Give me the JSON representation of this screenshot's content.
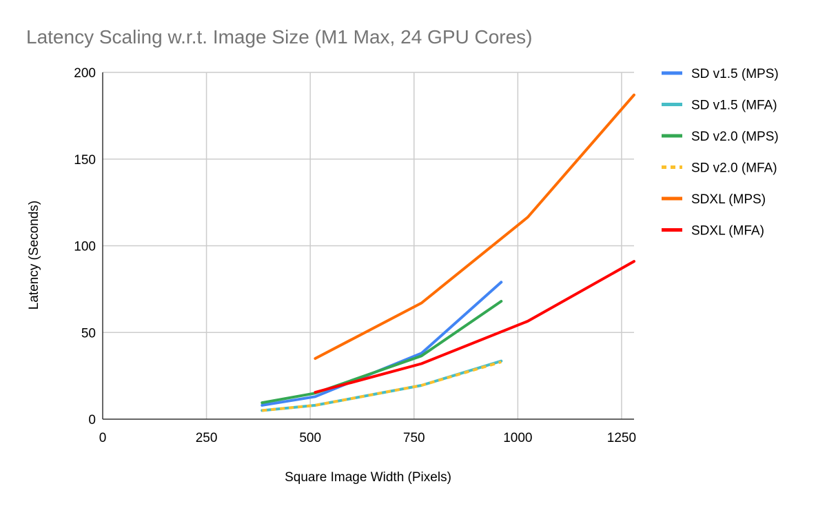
{
  "chart_data": {
    "type": "line",
    "title": "Latency Scaling w.r.t. Image Size (M1 Max, 24 GPU Cores)",
    "xlabel": "Square Image Width (Pixels)",
    "ylabel": "Latency (Seconds)",
    "xlim": [
      0,
      1280
    ],
    "ylim": [
      0,
      200
    ],
    "x_ticks": [
      0,
      250,
      500,
      750,
      1000,
      1250
    ],
    "y_ticks": [
      0,
      50,
      100,
      150,
      200
    ],
    "grid": true,
    "legend_position": "right",
    "series": [
      {
        "name": "SD v1.5 (MPS)",
        "color": "#4285f4",
        "dashed": false,
        "points": [
          [
            384,
            8
          ],
          [
            512,
            13
          ],
          [
            768,
            38
          ],
          [
            960,
            79
          ]
        ]
      },
      {
        "name": "SD v1.5 (MFA)",
        "color": "#46bdc6",
        "dashed": false,
        "points": [
          [
            384,
            5
          ],
          [
            512,
            8
          ],
          [
            768,
            19.5
          ],
          [
            960,
            33.5
          ]
        ]
      },
      {
        "name": "SD v2.0 (MPS)",
        "color": "#34a853",
        "dashed": false,
        "points": [
          [
            384,
            9.5
          ],
          [
            512,
            15
          ],
          [
            768,
            36.5
          ],
          [
            960,
            68
          ]
        ]
      },
      {
        "name": "SD v2.0 (MFA)",
        "color": "#fbc02d",
        "dashed": true,
        "points": [
          [
            384,
            5
          ],
          [
            512,
            8
          ],
          [
            768,
            19.5
          ],
          [
            960,
            33
          ]
        ]
      },
      {
        "name": "SDXL (MPS)",
        "color": "#ff6d01",
        "dashed": false,
        "points": [
          [
            512,
            35
          ],
          [
            768,
            67
          ],
          [
            1024,
            116.5
          ],
          [
            1280,
            187
          ]
        ]
      },
      {
        "name": "SDXL (MFA)",
        "color": "#ff0000",
        "dashed": false,
        "points": [
          [
            512,
            15.5
          ],
          [
            768,
            32
          ],
          [
            1024,
            56.5
          ],
          [
            1280,
            91
          ]
        ]
      }
    ]
  }
}
